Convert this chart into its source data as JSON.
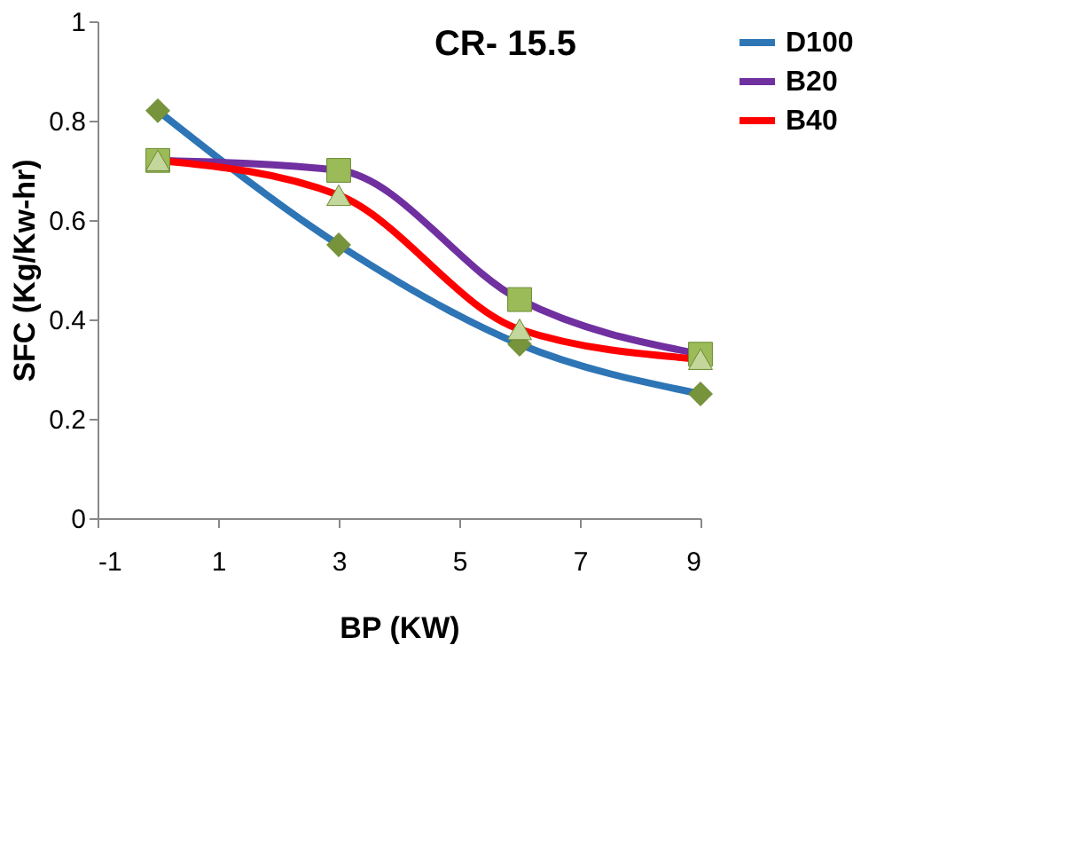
{
  "chart_data": {
    "type": "line",
    "title": "CR- 15.5",
    "xlabel": "BP (KW)",
    "ylabel": "SFC  (Kg/Kw-hr)",
    "x": [
      0,
      3,
      6,
      9
    ],
    "xlim": [
      -1,
      9
    ],
    "xticks": [
      -1,
      1,
      3,
      5,
      7,
      9
    ],
    "ylim": [
      0,
      1
    ],
    "yticks": [
      0,
      0.2,
      0.4,
      0.6,
      0.8,
      1
    ],
    "grid": false,
    "legend": "right",
    "series": [
      {
        "name": "D100",
        "color": "#2e75b6",
        "marker": "diamond",
        "colors": [
          "#77933c",
          "#77933c",
          "#77933c",
          "#77933c"
        ],
        "values": [
          0.82,
          0.55,
          0.35,
          0.25
        ]
      },
      {
        "name": "B20",
        "color": "#7030a0",
        "marker": "square",
        "colors": [
          "#9bbb59",
          "#9bbb59",
          "#9bbb59",
          "#9bbb59"
        ],
        "values": [
          0.72,
          0.7,
          0.44,
          0.33
        ]
      },
      {
        "name": "B40",
        "color": "#ff0000",
        "marker": "triangle",
        "colors": [
          "#c3d69b",
          "#c3d69b",
          "#c3d69b",
          "#c3d69b"
        ],
        "values": [
          0.72,
          0.65,
          0.38,
          0.32
        ]
      }
    ]
  }
}
